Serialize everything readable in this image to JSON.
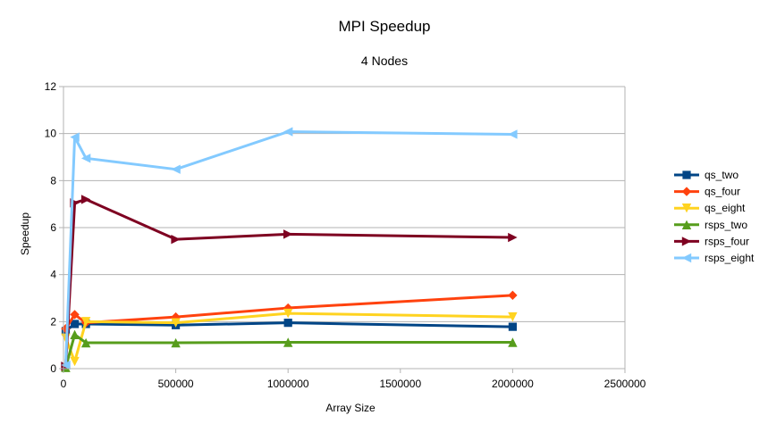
{
  "chart_data": {
    "type": "line",
    "title": "MPI Speedup",
    "subtitle": "4 Nodes",
    "xlabel": "Array Size",
    "ylabel": "Speedup",
    "xlim": [
      0,
      2500000
    ],
    "ylim": [
      0,
      12
    ],
    "xticks": [
      0,
      500000,
      1000000,
      1500000,
      2000000,
      2500000
    ],
    "yticks": [
      0,
      2,
      4,
      6,
      8,
      10,
      12
    ],
    "grid": "horizontal",
    "legend_position": "right",
    "series": [
      {
        "name": "qs_two",
        "color": "#004586",
        "marker": "square",
        "x": [
          10000,
          50000,
          100000,
          500000,
          1000000,
          2000000
        ],
        "values": [
          1.6,
          1.9,
          1.9,
          1.85,
          1.95,
          1.78
        ]
      },
      {
        "name": "qs_four",
        "color": "#ff420e",
        "marker": "diamond",
        "x": [
          10000,
          50000,
          100000,
          500000,
          1000000,
          2000000
        ],
        "values": [
          1.7,
          2.3,
          1.95,
          2.2,
          2.58,
          3.12
        ]
      },
      {
        "name": "qs_eight",
        "color": "#ffd320",
        "marker": "triangle-down",
        "x": [
          10000,
          50000,
          100000,
          500000,
          1000000,
          2000000
        ],
        "values": [
          1.3,
          0.3,
          2.0,
          1.95,
          2.35,
          2.2
        ]
      },
      {
        "name": "rsps_two",
        "color": "#579d1c",
        "marker": "triangle-up",
        "x": [
          10000,
          50000,
          100000,
          500000,
          1000000,
          2000000
        ],
        "values": [
          0.05,
          1.45,
          1.1,
          1.1,
          1.12,
          1.12
        ]
      },
      {
        "name": "rsps_four",
        "color": "#7e0021",
        "marker": "triangle-right",
        "x": [
          10000,
          50000,
          100000,
          500000,
          1000000,
          2000000
        ],
        "values": [
          0.1,
          7.05,
          7.2,
          5.5,
          5.72,
          5.58
        ]
      },
      {
        "name": "rsps_eight",
        "color": "#83caff",
        "marker": "triangle-left",
        "x": [
          10000,
          50000,
          100000,
          500000,
          1000000,
          2000000
        ],
        "values": [
          0.15,
          9.85,
          8.95,
          8.48,
          10.08,
          9.97
        ]
      }
    ]
  }
}
